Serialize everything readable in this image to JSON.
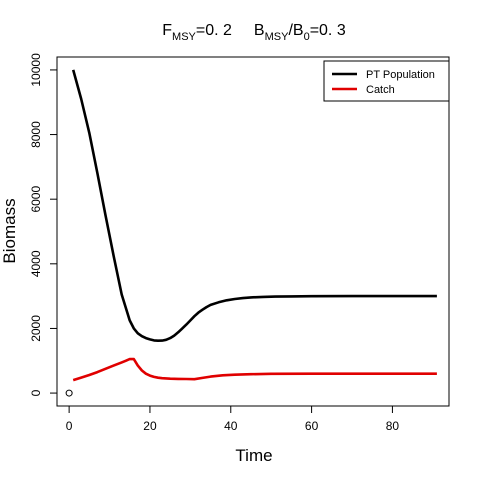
{
  "chart_data": {
    "type": "line",
    "title": {
      "f_main": "F",
      "f_sub": "MSY",
      "f_value": "=0. 2",
      "b_main": "B",
      "b_sub": "MSY",
      "b_slash": "/B",
      "b_sub0": "0",
      "b_value": "=0. 3"
    },
    "xlabel": "Time",
    "ylabel": "Biomass",
    "xlim": [
      -3,
      94
    ],
    "ylim": [
      -400,
      10400
    ],
    "x_ticks": [
      0,
      20,
      40,
      60,
      80
    ],
    "y_ticks": [
      0,
      2000,
      4000,
      6000,
      8000,
      10000
    ],
    "legend": {
      "position": "top-right",
      "entries": [
        {
          "label": "PT Population",
          "color": "#000000"
        },
        {
          "label": "Catch",
          "color": "#e00000"
        }
      ]
    },
    "series": [
      {
        "name": "PT Population",
        "color": "#000000",
        "x": [
          1,
          3,
          5,
          7,
          9,
          11,
          13,
          15,
          16,
          17,
          18,
          19,
          20,
          21,
          22,
          23,
          24,
          25,
          26,
          27,
          28,
          29,
          30,
          31,
          32,
          33,
          34,
          35,
          37,
          39,
          41,
          43,
          45,
          48,
          51,
          55,
          60,
          70,
          80,
          91
        ],
        "y": [
          10000,
          9100,
          8050,
          6800,
          5500,
          4250,
          3050,
          2250,
          2000,
          1850,
          1760,
          1700,
          1660,
          1630,
          1620,
          1625,
          1650,
          1700,
          1780,
          1880,
          2000,
          2120,
          2250,
          2380,
          2490,
          2580,
          2660,
          2730,
          2810,
          2870,
          2910,
          2940,
          2960,
          2975,
          2985,
          2992,
          2997,
          3000,
          3000,
          3000
        ]
      },
      {
        "name": "Catch",
        "color": "#e00000",
        "x": [
          1,
          3,
          5,
          7,
          9,
          11,
          13,
          14,
          15,
          16,
          17,
          18,
          19,
          20,
          21,
          22,
          23,
          25,
          27,
          29,
          31,
          33,
          35,
          38,
          41,
          45,
          50,
          60,
          70,
          80,
          91
        ],
        "y": [
          400,
          480,
          560,
          650,
          750,
          850,
          950,
          1000,
          1050,
          1050,
          850,
          700,
          600,
          540,
          500,
          475,
          460,
          445,
          440,
          435,
          430,
          470,
          510,
          550,
          570,
          585,
          595,
          600,
          600,
          600,
          600
        ]
      }
    ],
    "points": [
      {
        "x": 0,
        "y": 0
      }
    ],
    "grid": false
  }
}
